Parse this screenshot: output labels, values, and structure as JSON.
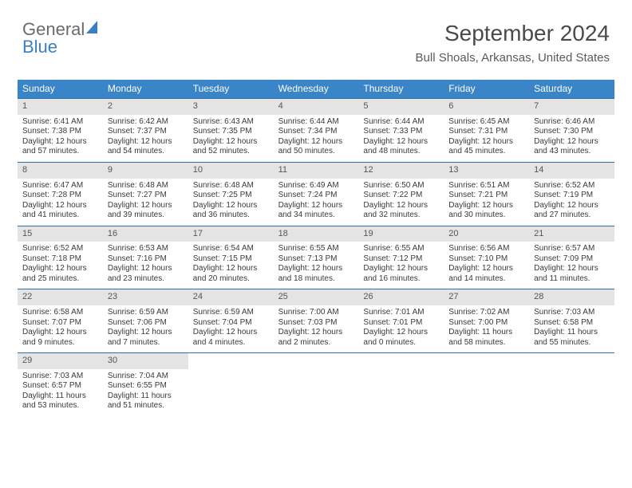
{
  "logo": {
    "text_a": "General",
    "text_b": "Blue"
  },
  "title": {
    "month": "September 2024",
    "location": "Bull Shoals, Arkansas, United States"
  },
  "colors": {
    "header_bg": "#3a84c8",
    "header_fg": "#ffffff",
    "rule": "#2f6ea8",
    "num_bg": "#e4e4e4",
    "logo_blue": "#3a7fc4"
  },
  "day_headers": [
    "Sunday",
    "Monday",
    "Tuesday",
    "Wednesday",
    "Thursday",
    "Friday",
    "Saturday"
  ],
  "weeks": [
    [
      {
        "n": "1",
        "sr": "6:41 AM",
        "ss": "7:38 PM",
        "dl": "12 hours and 57 minutes."
      },
      {
        "n": "2",
        "sr": "6:42 AM",
        "ss": "7:37 PM",
        "dl": "12 hours and 54 minutes."
      },
      {
        "n": "3",
        "sr": "6:43 AM",
        "ss": "7:35 PM",
        "dl": "12 hours and 52 minutes."
      },
      {
        "n": "4",
        "sr": "6:44 AM",
        "ss": "7:34 PM",
        "dl": "12 hours and 50 minutes."
      },
      {
        "n": "5",
        "sr": "6:44 AM",
        "ss": "7:33 PM",
        "dl": "12 hours and 48 minutes."
      },
      {
        "n": "6",
        "sr": "6:45 AM",
        "ss": "7:31 PM",
        "dl": "12 hours and 45 minutes."
      },
      {
        "n": "7",
        "sr": "6:46 AM",
        "ss": "7:30 PM",
        "dl": "12 hours and 43 minutes."
      }
    ],
    [
      {
        "n": "8",
        "sr": "6:47 AM",
        "ss": "7:28 PM",
        "dl": "12 hours and 41 minutes."
      },
      {
        "n": "9",
        "sr": "6:48 AM",
        "ss": "7:27 PM",
        "dl": "12 hours and 39 minutes."
      },
      {
        "n": "10",
        "sr": "6:48 AM",
        "ss": "7:25 PM",
        "dl": "12 hours and 36 minutes."
      },
      {
        "n": "11",
        "sr": "6:49 AM",
        "ss": "7:24 PM",
        "dl": "12 hours and 34 minutes."
      },
      {
        "n": "12",
        "sr": "6:50 AM",
        "ss": "7:22 PM",
        "dl": "12 hours and 32 minutes."
      },
      {
        "n": "13",
        "sr": "6:51 AM",
        "ss": "7:21 PM",
        "dl": "12 hours and 30 minutes."
      },
      {
        "n": "14",
        "sr": "6:52 AM",
        "ss": "7:19 PM",
        "dl": "12 hours and 27 minutes."
      }
    ],
    [
      {
        "n": "15",
        "sr": "6:52 AM",
        "ss": "7:18 PM",
        "dl": "12 hours and 25 minutes."
      },
      {
        "n": "16",
        "sr": "6:53 AM",
        "ss": "7:16 PM",
        "dl": "12 hours and 23 minutes."
      },
      {
        "n": "17",
        "sr": "6:54 AM",
        "ss": "7:15 PM",
        "dl": "12 hours and 20 minutes."
      },
      {
        "n": "18",
        "sr": "6:55 AM",
        "ss": "7:13 PM",
        "dl": "12 hours and 18 minutes."
      },
      {
        "n": "19",
        "sr": "6:55 AM",
        "ss": "7:12 PM",
        "dl": "12 hours and 16 minutes."
      },
      {
        "n": "20",
        "sr": "6:56 AM",
        "ss": "7:10 PM",
        "dl": "12 hours and 14 minutes."
      },
      {
        "n": "21",
        "sr": "6:57 AM",
        "ss": "7:09 PM",
        "dl": "12 hours and 11 minutes."
      }
    ],
    [
      {
        "n": "22",
        "sr": "6:58 AM",
        "ss": "7:07 PM",
        "dl": "12 hours and 9 minutes."
      },
      {
        "n": "23",
        "sr": "6:59 AM",
        "ss": "7:06 PM",
        "dl": "12 hours and 7 minutes."
      },
      {
        "n": "24",
        "sr": "6:59 AM",
        "ss": "7:04 PM",
        "dl": "12 hours and 4 minutes."
      },
      {
        "n": "25",
        "sr": "7:00 AM",
        "ss": "7:03 PM",
        "dl": "12 hours and 2 minutes."
      },
      {
        "n": "26",
        "sr": "7:01 AM",
        "ss": "7:01 PM",
        "dl": "12 hours and 0 minutes."
      },
      {
        "n": "27",
        "sr": "7:02 AM",
        "ss": "7:00 PM",
        "dl": "11 hours and 58 minutes."
      },
      {
        "n": "28",
        "sr": "7:03 AM",
        "ss": "6:58 PM",
        "dl": "11 hours and 55 minutes."
      }
    ],
    [
      {
        "n": "29",
        "sr": "7:03 AM",
        "ss": "6:57 PM",
        "dl": "11 hours and 53 minutes."
      },
      {
        "n": "30",
        "sr": "7:04 AM",
        "ss": "6:55 PM",
        "dl": "11 hours and 51 minutes."
      },
      null,
      null,
      null,
      null,
      null
    ]
  ]
}
